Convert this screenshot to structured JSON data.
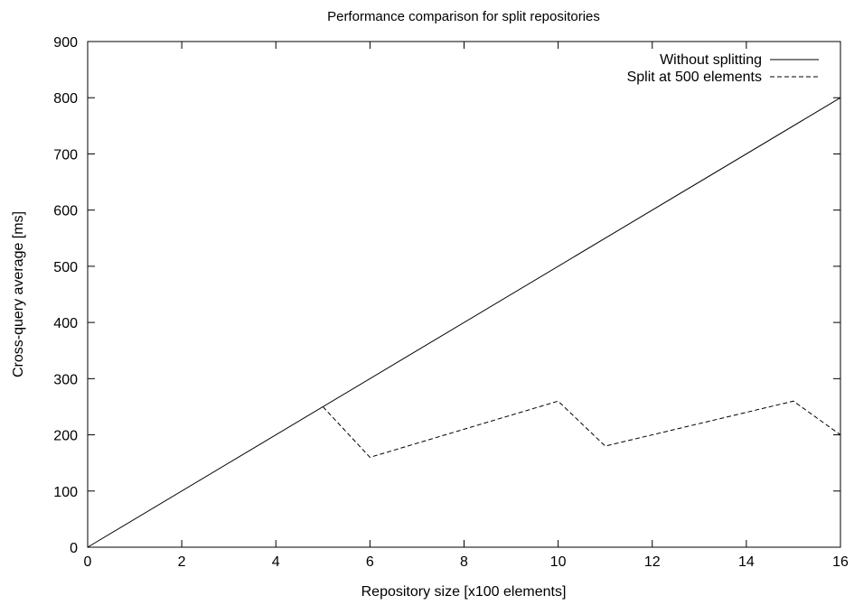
{
  "chart_data": {
    "type": "line",
    "title": "Performance comparison for split repositories",
    "xlabel": "Repository size [x100 elements]",
    "ylabel": "Cross-query average [ms]",
    "xlim": [
      0,
      16
    ],
    "ylim": [
      0,
      900
    ],
    "xticks": [
      0,
      2,
      4,
      6,
      8,
      10,
      12,
      14,
      16
    ],
    "yticks": [
      0,
      100,
      200,
      300,
      400,
      500,
      600,
      700,
      800,
      900
    ],
    "grid": false,
    "legend_position": "top-right",
    "series": [
      {
        "name": "Without splitting",
        "style": "solid",
        "color": "#000000",
        "x": [
          0,
          16
        ],
        "y": [
          0,
          800
        ]
      },
      {
        "name": "Split at 500 elements",
        "style": "dashed",
        "color": "#000000",
        "x": [
          5,
          6,
          10,
          11,
          15,
          16
        ],
        "y": [
          250,
          160,
          260,
          180,
          260,
          200
        ]
      }
    ]
  }
}
